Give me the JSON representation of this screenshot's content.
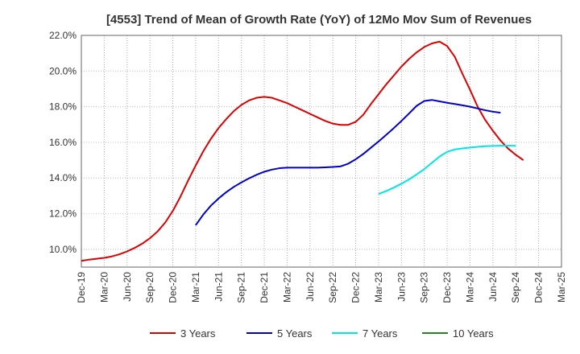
{
  "chart_data": {
    "type": "line",
    "title": "[4553]  Trend of Mean of Growth Rate (YoY) of 12Mo Mov Sum of Revenues",
    "xlabel": "",
    "ylabel": "",
    "ylim": [
      9.0,
      22.0
    ],
    "y_ticks": [
      10.0,
      12.0,
      14.0,
      16.0,
      18.0,
      20.0,
      22.0
    ],
    "y_tick_labels": [
      "10.0%",
      "12.0%",
      "14.0%",
      "16.0%",
      "18.0%",
      "20.0%",
      "22.0%"
    ],
    "x_tick_labels": [
      "Dec-19",
      "Mar-20",
      "Jun-20",
      "Sep-20",
      "Dec-20",
      "Mar-21",
      "Jun-21",
      "Sep-21",
      "Dec-21",
      "Mar-22",
      "Jun-22",
      "Sep-22",
      "Dec-22",
      "Mar-23",
      "Jun-23",
      "Sep-23",
      "Dec-23",
      "Mar-24",
      "Jun-24",
      "Sep-24",
      "Dec-24",
      "Mar-25"
    ],
    "x_start": "Dec-19",
    "x_end": "Mar-25",
    "grid": true,
    "legend_position": "bottom",
    "series": [
      {
        "name": "3 Years",
        "color": "#dd0000",
        "start_index": 0,
        "values": [
          9.35,
          9.42,
          9.47,
          9.52,
          9.6,
          9.72,
          9.88,
          10.08,
          10.32,
          10.62,
          11.0,
          11.5,
          12.15,
          12.95,
          13.85,
          14.7,
          15.5,
          16.2,
          16.8,
          17.3,
          17.75,
          18.1,
          18.35,
          18.5,
          18.55,
          18.5,
          18.35,
          18.2,
          18.0,
          17.8,
          17.6,
          17.4,
          17.2,
          17.05,
          16.98,
          16.98,
          17.15,
          17.55,
          18.15,
          18.7,
          19.25,
          19.75,
          20.25,
          20.68,
          21.05,
          21.35,
          21.55,
          21.65,
          21.4,
          20.8,
          19.85,
          18.95,
          18.0,
          17.25,
          16.65,
          16.1,
          15.65,
          15.3,
          15.0
        ]
      },
      {
        "name": "5 Years",
        "color": "#0000cc",
        "start_index": 15,
        "values": [
          11.35,
          11.95,
          12.45,
          12.85,
          13.2,
          13.5,
          13.75,
          13.98,
          14.18,
          14.35,
          14.47,
          14.55,
          14.58,
          14.58,
          14.58,
          14.58,
          14.58,
          14.6,
          14.62,
          14.65,
          14.8,
          15.05,
          15.35,
          15.7,
          16.05,
          16.42,
          16.8,
          17.2,
          17.62,
          18.05,
          18.32,
          18.38,
          18.3,
          18.22,
          18.15,
          18.08,
          18.0,
          17.9,
          17.8,
          17.72,
          17.66
        ]
      },
      {
        "name": "7 Years",
        "color": "#00e5e5",
        "start_index": 39,
        "values": [
          13.1,
          13.27,
          13.46,
          13.68,
          13.92,
          14.2,
          14.5,
          14.85,
          15.2,
          15.47,
          15.6,
          15.66,
          15.71,
          15.75,
          15.78,
          15.8,
          15.81,
          15.81,
          15.81
        ]
      },
      {
        "name": "10 Years",
        "color": "#228822",
        "start_index": 0,
        "values": []
      }
    ]
  }
}
